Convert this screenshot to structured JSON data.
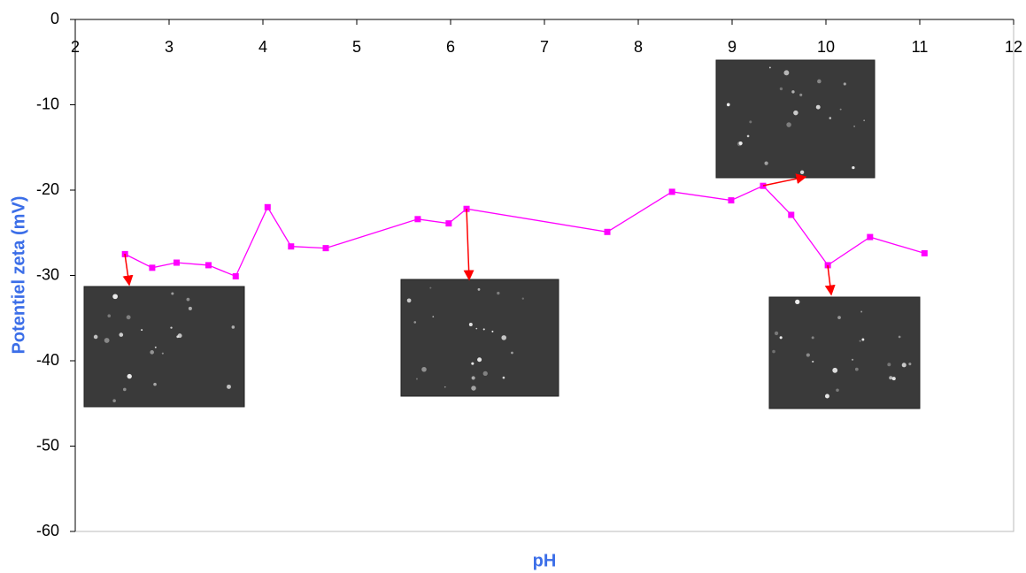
{
  "chart_data": {
    "type": "line",
    "x_label": "pH",
    "y_label": "Potentiel zeta (mV)",
    "x": [
      2.53,
      2.82,
      3.08,
      3.42,
      3.71,
      4.05,
      4.3,
      4.67,
      5.65,
      5.98,
      6.17,
      7.67,
      8.36,
      8.99,
      9.33,
      9.63,
      10.02,
      10.47,
      11.05
    ],
    "series": [
      {
        "color": "#ff00ff",
        "values": [
          -27.5,
          -29.1,
          -28.5,
          -28.8,
          -30.1,
          -22.0,
          -26.6,
          -26.8,
          -23.4,
          -23.9,
          -22.2,
          -24.9,
          -20.2,
          -21.2,
          -19.5,
          -22.9,
          -28.8,
          -25.5,
          -27.4
        ]
      }
    ],
    "xlim": [
      2,
      12
    ],
    "xticks": [
      2,
      3,
      4,
      5,
      6,
      7,
      8,
      9,
      10,
      11,
      12
    ],
    "ylim": [
      -60,
      0
    ],
    "yticks": [
      0,
      -10,
      -20,
      -30,
      -40,
      -50,
      -60
    ]
  }
}
